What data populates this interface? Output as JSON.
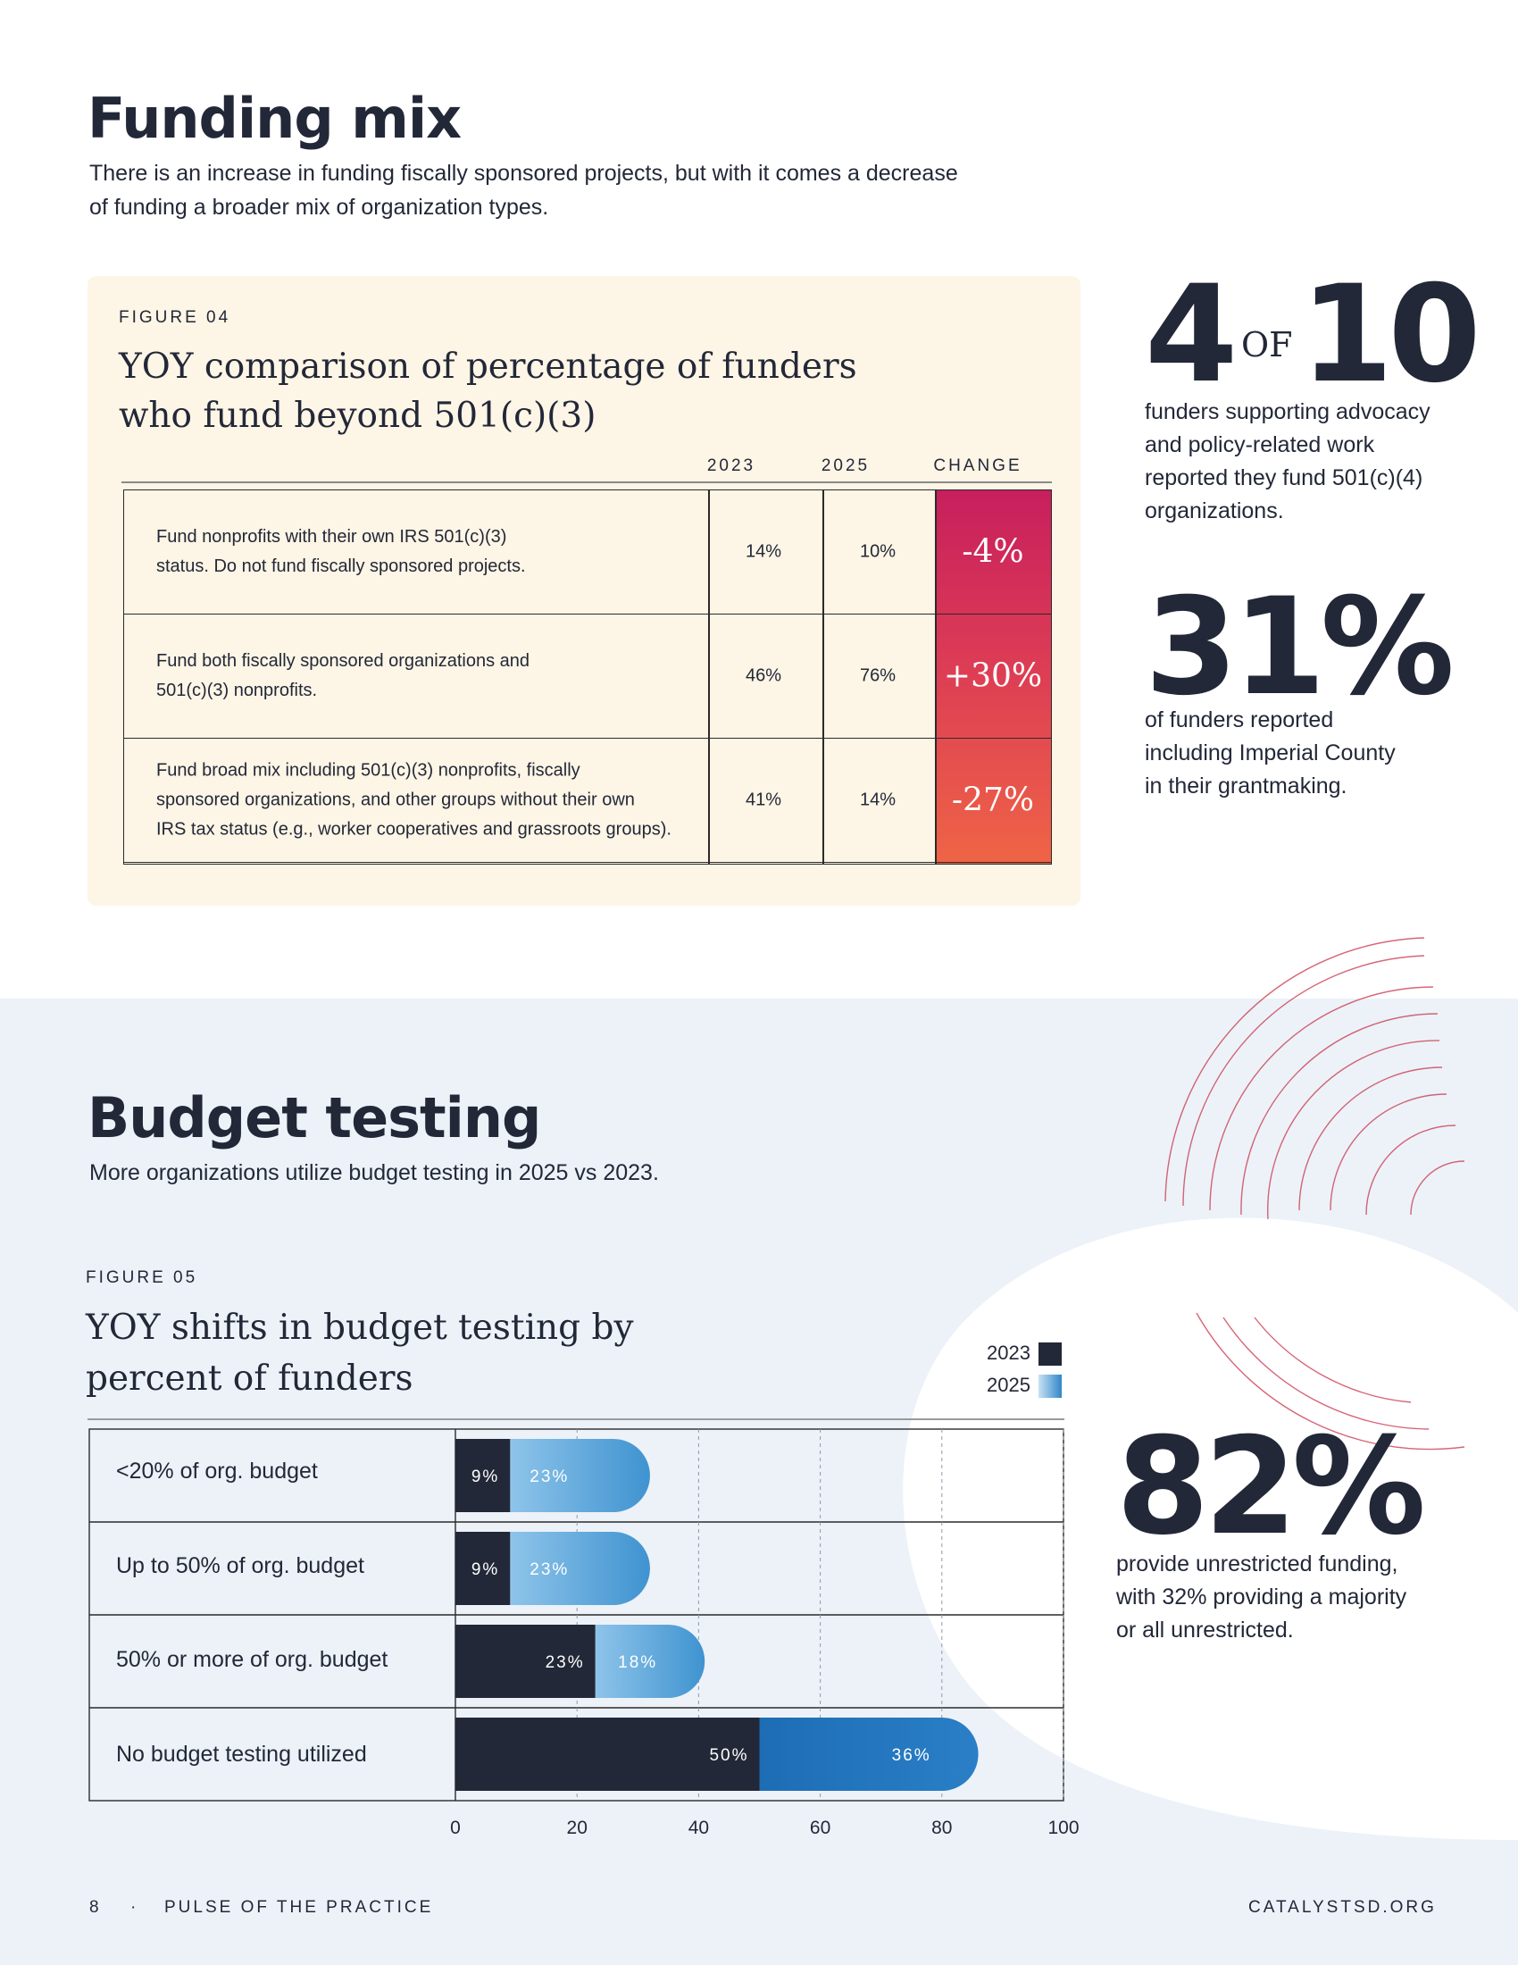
{
  "funding_mix": {
    "title": "Funding mix",
    "lede_line1": "There is an increase in funding fiscally sponsored projects, but with it comes a decrease",
    "lede_line2": "of funding a broader mix of organization types.",
    "figure_label": "FIGURE 04",
    "figure_title_line1": "YOY comparison of percentage of funders",
    "figure_title_line2": "who fund beyond 501(c)(3)",
    "columns": {
      "y2023": "2023",
      "y2025": "2025",
      "change": "CHANGE"
    },
    "rows": [
      {
        "desc_lines": [
          "Fund nonprofits with their own IRS 501(c)(3)",
          "status. Do not fund fiscally sponsored projects."
        ],
        "v2023": "14%",
        "v2025": "10%",
        "change": "-4%"
      },
      {
        "desc_lines": [
          "Fund both fiscally sponsored organizations and",
          "501(c)(3) nonprofits."
        ],
        "v2023": "46%",
        "v2025": "76%",
        "change": "+30%"
      },
      {
        "desc_lines": [
          "Fund broad mix including 501(c)(3) nonprofits, fiscally",
          "sponsored organizations, and other groups without their own",
          "IRS tax status (e.g., worker cooperatives and grassroots groups)."
        ],
        "v2023": "41%",
        "v2025": "14%",
        "change": "-27%"
      }
    ]
  },
  "stats": {
    "s1_num": "4",
    "s1_of": "OF",
    "s1_den": "10",
    "s1_text": [
      "funders supporting advocacy",
      "and policy-related work",
      "reported they fund 501(c)(4)",
      "organizations."
    ],
    "s2_num": "31%",
    "s2_text": [
      "of funders reported",
      "including Imperial County",
      "in their grantmaking."
    ],
    "s3_num": "82%",
    "s3_text": [
      "provide unrestricted funding,",
      "with 32% providing a majority",
      "or all unrestricted."
    ]
  },
  "budget_testing": {
    "title": "Budget testing",
    "lede": "More organizations utilize budget testing in 2025 vs 2023.",
    "figure_label": "FIGURE 05",
    "figure_title_line1": "YOY shifts in budget testing by",
    "figure_title_line2": "percent of funders"
  },
  "chart_data": {
    "type": "bar",
    "orientation": "horizontal",
    "stacked": true,
    "title": "YOY shifts in budget testing by percent of funders",
    "categories": [
      "<20% of org. budget",
      "Up to 50% of org. budget",
      "50% or more of org. budget",
      "No budget testing utilized"
    ],
    "series": [
      {
        "name": "2023",
        "values": [
          9,
          9,
          23,
          50
        ],
        "color": "#232838"
      },
      {
        "name": "2025",
        "values": [
          23,
          23,
          18,
          36
        ],
        "color": "#4a9ad4"
      }
    ],
    "data_labels": [
      [
        "9%",
        "23%"
      ],
      [
        "9%",
        "23%"
      ],
      [
        "23%",
        "18%"
      ],
      [
        "50%",
        "36%"
      ]
    ],
    "xlim": [
      0,
      100
    ],
    "xticks": [
      "0",
      "20",
      "40",
      "60",
      "80",
      "100"
    ],
    "grid": true,
    "legend": "top-right"
  },
  "footer": {
    "page": "8",
    "dot": "·",
    "publication": "PULSE OF THE PRACTICE",
    "site": "CATALYSTSD.ORG"
  }
}
